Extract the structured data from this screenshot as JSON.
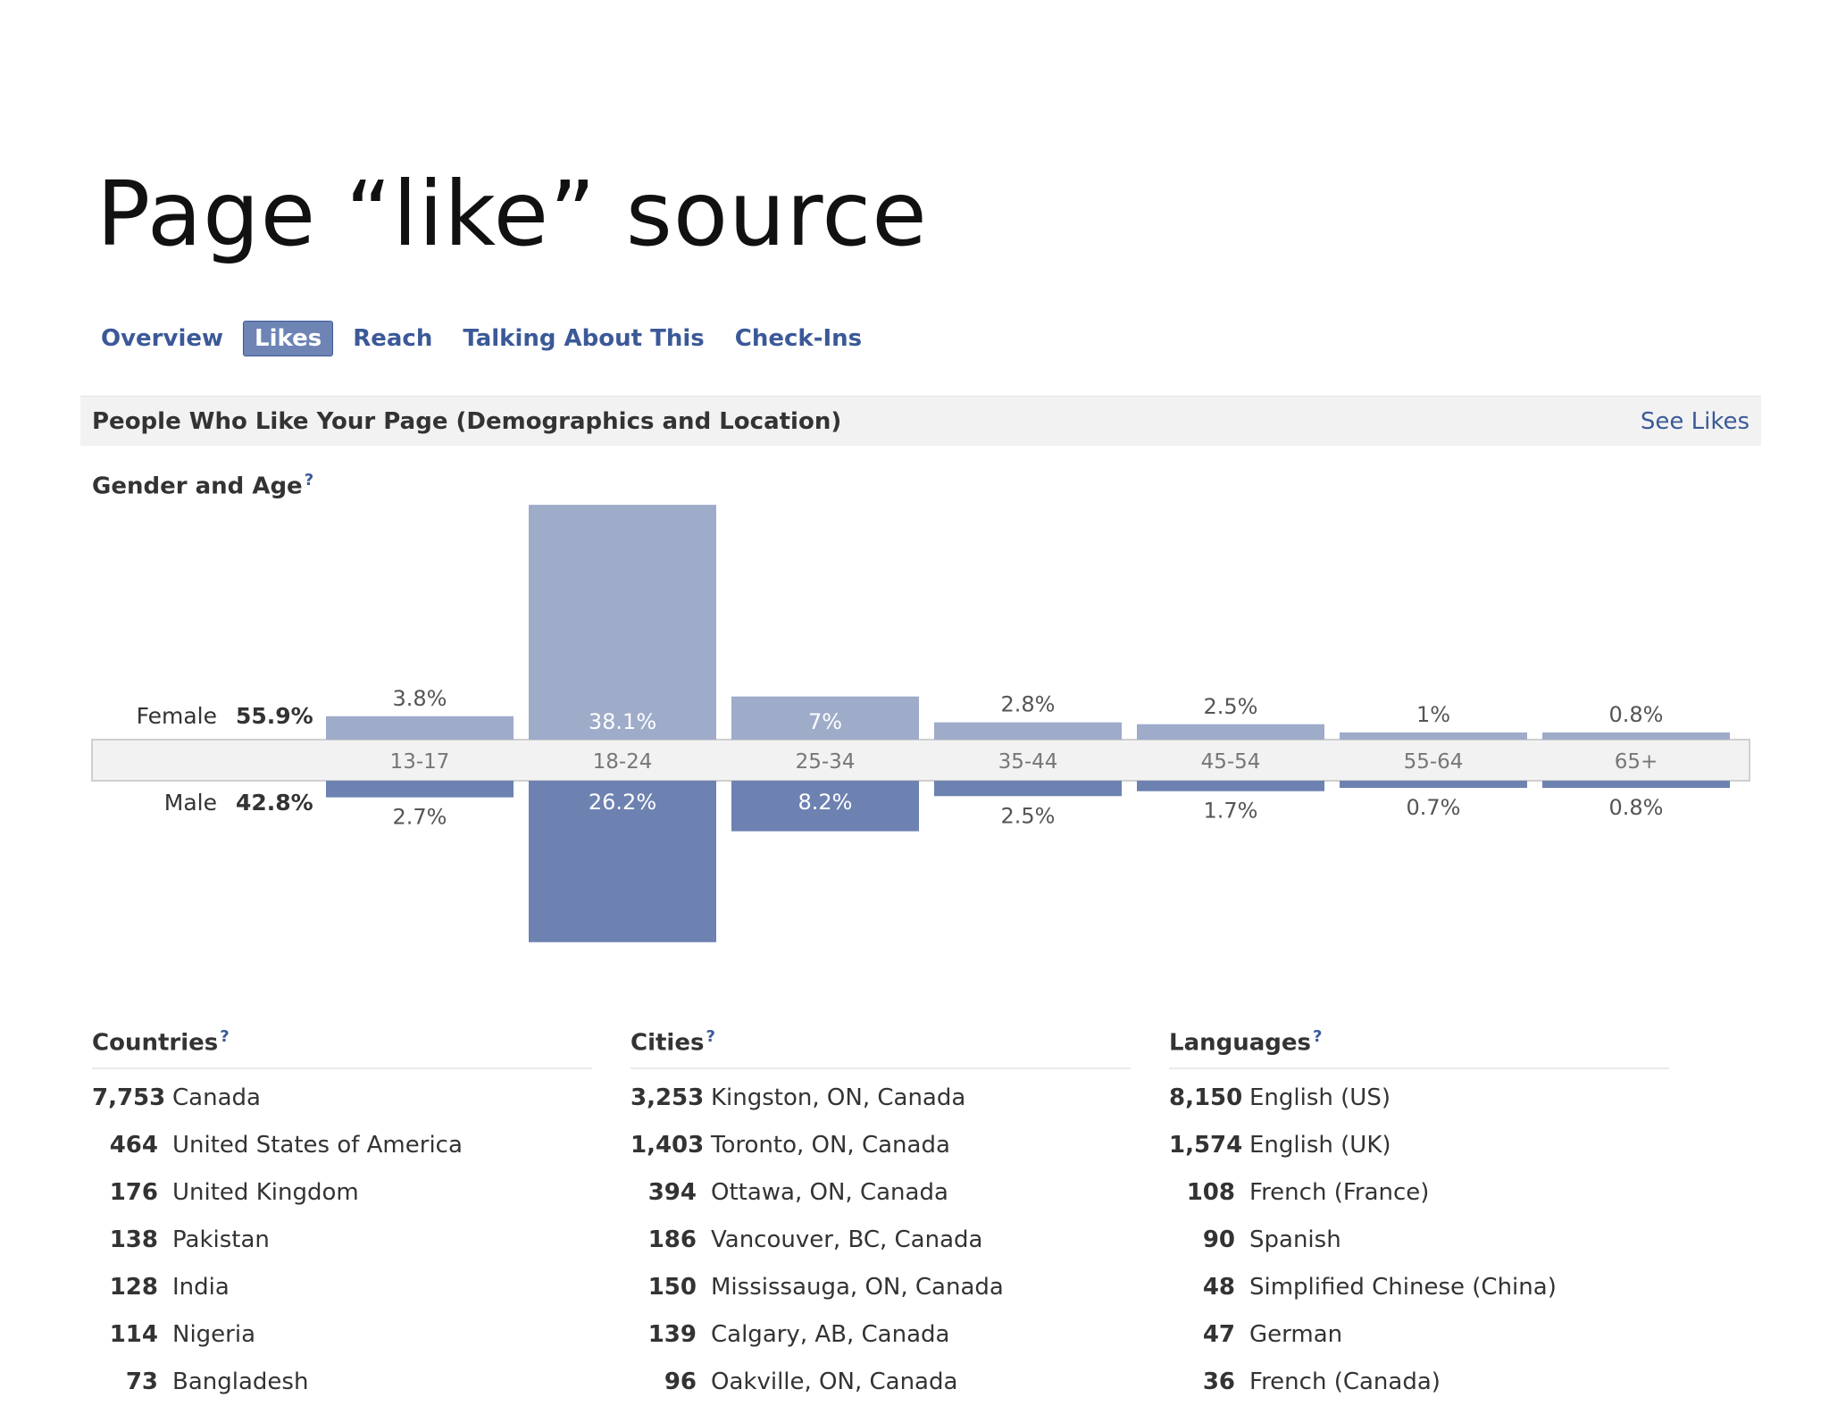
{
  "slide": {
    "title": "Page “like” source"
  },
  "tabs": [
    {
      "label": "Overview",
      "active": false
    },
    {
      "label": "Likes",
      "active": true
    },
    {
      "label": "Reach",
      "active": false
    },
    {
      "label": "Talking About This",
      "active": false
    },
    {
      "label": "Check-Ins",
      "active": false
    }
  ],
  "panel": {
    "title": "People Who Like Your Page (Demographics and Location)",
    "see_likes": "See Likes"
  },
  "gender_age": {
    "title": "Gender and Age",
    "help": "?"
  },
  "chart_data": {
    "type": "bar",
    "categories": [
      "13-17",
      "18-24",
      "25-34",
      "35-44",
      "45-54",
      "55-64",
      "65+"
    ],
    "series": [
      {
        "name": "Female",
        "total": "55.9%",
        "values": [
          3.8,
          38.1,
          7,
          2.8,
          2.5,
          1,
          0.8
        ],
        "labels": [
          "3.8%",
          "38.1%",
          "7%",
          "2.8%",
          "2.5%",
          "1%",
          "0.8%"
        ]
      },
      {
        "name": "Male",
        "total": "42.8%",
        "values": [
          2.7,
          26.2,
          8.2,
          2.5,
          1.7,
          0.7,
          0.8
        ],
        "labels": [
          "2.7%",
          "26.2%",
          "8.2%",
          "2.5%",
          "1.7%",
          "0.7%",
          "0.8%"
        ]
      }
    ],
    "colors": {
      "female": "#9eabc9",
      "male": "#6d82b1",
      "band": "#f2f2f2",
      "band_border": "#cfcfcf"
    }
  },
  "countries": {
    "title": "Countries",
    "help": "?",
    "rows": [
      {
        "count": "7,753",
        "name": "Canada"
      },
      {
        "count": "464",
        "name": "United States of America"
      },
      {
        "count": "176",
        "name": "United Kingdom"
      },
      {
        "count": "138",
        "name": "Pakistan"
      },
      {
        "count": "128",
        "name": "India"
      },
      {
        "count": "114",
        "name": "Nigeria"
      },
      {
        "count": "73",
        "name": "Bangladesh"
      }
    ]
  },
  "cities": {
    "title": "Cities",
    "help": "?",
    "rows": [
      {
        "count": "3,253",
        "name": "Kingston, ON, Canada"
      },
      {
        "count": "1,403",
        "name": "Toronto, ON, Canada"
      },
      {
        "count": "394",
        "name": "Ottawa, ON, Canada"
      },
      {
        "count": "186",
        "name": "Vancouver, BC, Canada"
      },
      {
        "count": "150",
        "name": "Mississauga, ON, Canada"
      },
      {
        "count": "139",
        "name": "Calgary, AB, Canada"
      },
      {
        "count": "96",
        "name": "Oakville, ON, Canada"
      }
    ]
  },
  "languages": {
    "title": "Languages",
    "help": "?",
    "rows": [
      {
        "count": "8,150",
        "name": "English (US)"
      },
      {
        "count": "1,574",
        "name": "English (UK)"
      },
      {
        "count": "108",
        "name": "French (France)"
      },
      {
        "count": "90",
        "name": "Spanish"
      },
      {
        "count": "48",
        "name": "Simplified Chinese (China)"
      },
      {
        "count": "47",
        "name": "German"
      },
      {
        "count": "36",
        "name": "French (Canada)"
      }
    ]
  }
}
